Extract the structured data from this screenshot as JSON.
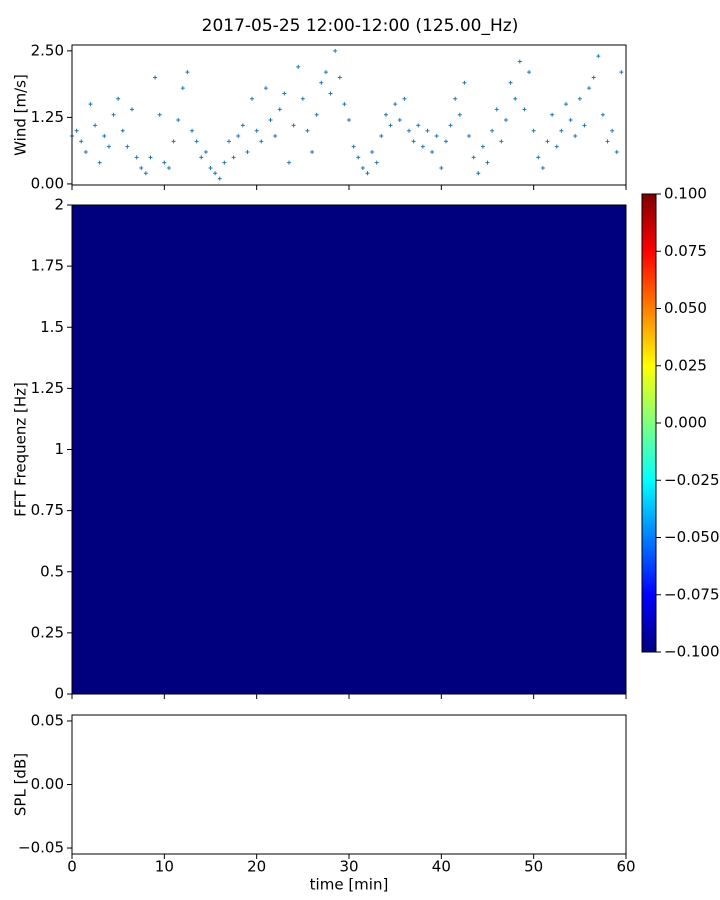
{
  "chart_data": [
    {
      "type": "scatter",
      "title": "2017-05-25 12:00-12:00 (125.00_Hz)",
      "ylabel": "Wind [m/s]",
      "color": "#1f77b4",
      "xlim": [
        0,
        60
      ],
      "ylim": [
        -0.02,
        2.61
      ],
      "yticks": [
        {
          "value": 0,
          "label": "0.00"
        },
        1.25,
        {
          "value": 2.5,
          "label": "2.50"
        }
      ],
      "x": [
        0,
        0.5,
        1,
        1.5,
        2,
        2.5,
        3,
        3.5,
        4,
        4.5,
        5,
        5.5,
        6,
        6.5,
        7,
        7.5,
        8,
        8.5,
        9,
        9.5,
        10,
        10.5,
        11,
        11.5,
        12,
        12.5,
        13,
        13.5,
        14,
        14.5,
        15,
        15.5,
        16,
        16.5,
        17,
        17.5,
        18,
        18.5,
        19,
        19.5,
        20,
        20.5,
        21,
        21.5,
        22,
        22.5,
        23,
        23.5,
        24,
        24.5,
        25,
        25.5,
        26,
        26.5,
        27,
        27.5,
        28,
        28.5,
        29,
        29.5,
        30,
        30.5,
        31,
        31.5,
        32,
        32.5,
        33,
        33.5,
        34,
        34.5,
        35,
        35.5,
        36,
        36.5,
        37,
        37.5,
        38,
        38.5,
        39,
        39.5,
        40,
        40.5,
        41,
        41.5,
        42,
        42.5,
        43,
        43.5,
        44,
        44.5,
        45,
        45.5,
        46,
        46.5,
        47,
        47.5,
        48,
        48.5,
        49,
        49.5,
        50,
        50.5,
        51,
        51.5,
        52,
        52.5,
        53,
        53.5,
        54,
        54.5,
        55,
        55.5,
        56,
        56.5,
        57,
        57.5,
        58,
        58.5,
        59,
        59.5
      ],
      "values": [
        0.9,
        1.0,
        0.8,
        0.6,
        1.5,
        1.1,
        0.4,
        0.9,
        0.7,
        1.3,
        1.6,
        1.0,
        0.7,
        1.4,
        0.5,
        0.3,
        0.2,
        0.5,
        2.0,
        1.3,
        0.4,
        0.3,
        0.8,
        1.2,
        1.8,
        2.1,
        1.0,
        0.8,
        0.5,
        0.6,
        0.3,
        0.2,
        0.1,
        0.4,
        0.8,
        0.5,
        0.9,
        1.1,
        0.6,
        1.6,
        1.0,
        0.8,
        1.8,
        1.2,
        0.9,
        1.4,
        1.7,
        0.4,
        1.1,
        2.2,
        1.6,
        1.0,
        0.6,
        1.3,
        1.9,
        2.1,
        1.7,
        2.5,
        2.0,
        1.5,
        1.2,
        0.7,
        0.5,
        0.3,
        0.2,
        0.6,
        0.4,
        0.9,
        1.3,
        1.1,
        1.5,
        1.2,
        1.6,
        1.0,
        0.8,
        1.1,
        0.7,
        1.0,
        0.6,
        0.9,
        0.3,
        0.8,
        1.1,
        1.6,
        1.3,
        1.9,
        0.9,
        0.5,
        0.2,
        0.7,
        0.4,
        1.0,
        1.4,
        0.8,
        1.2,
        1.9,
        1.6,
        2.3,
        1.4,
        2.1,
        1.0,
        0.5,
        0.3,
        0.8,
        1.3,
        0.7,
        1.0,
        1.5,
        1.2,
        0.9,
        1.6,
        1.1,
        1.8,
        2.0,
        2.4,
        1.3,
        0.8,
        1.0,
        0.6,
        2.1
      ]
    },
    {
      "type": "heatmap",
      "ylabel": "FFT Frequenz [Hz]",
      "xlim": [
        0,
        60
      ],
      "ylim": [
        0,
        2
      ],
      "yticks": [
        0,
        0.25,
        0.5,
        0.75,
        1,
        1.25,
        1.5,
        1.75,
        2
      ],
      "z": [
        [
          -0.1
        ]
      ],
      "clim": [
        -0.1,
        0.1
      ],
      "colorbar_ticks": [
        {
          "value": -0.1,
          "label": "−0.100"
        },
        {
          "value": -0.075,
          "label": "−0.075"
        },
        {
          "value": -0.05,
          "label": "−0.050"
        },
        {
          "value": -0.025,
          "label": "−0.025"
        },
        {
          "value": 0,
          "label": "0.000"
        },
        0.025,
        {
          "value": 0.05,
          "label": "0.050"
        },
        0.075,
        {
          "value": 0.1,
          "label": "0.100"
        }
      ],
      "colormap": [
        "#00007f",
        "#0000ff",
        "#007fff",
        "#00ffff",
        "#7fff7f",
        "#ffff00",
        "#ff7f00",
        "#ff0000",
        "#7f0000"
      ]
    },
    {
      "type": "line",
      "ylabel": "SPL [dB]",
      "xlabel": "time [min]",
      "xlim": [
        0,
        60
      ],
      "ylim": [
        -0.0547,
        0.0547
      ],
      "xticks": [
        0,
        10,
        20,
        30,
        40,
        50,
        60
      ],
      "yticks": [
        {
          "value": -0.05,
          "label": "−0.05"
        },
        {
          "value": 0,
          "label": "0.00"
        },
        0.05
      ]
    }
  ]
}
